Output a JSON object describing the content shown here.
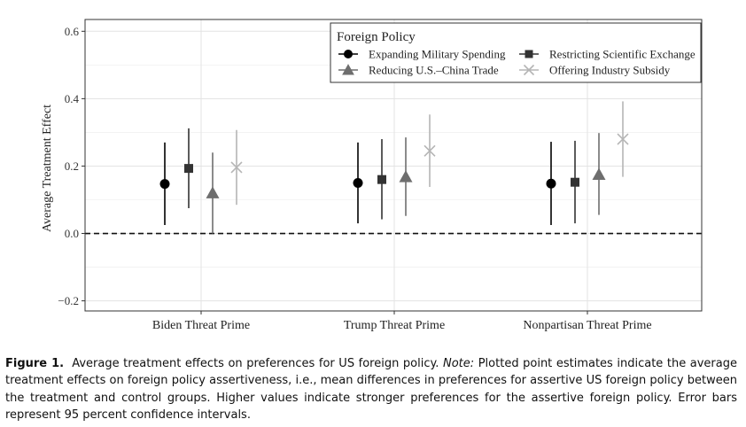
{
  "chart_data": {
    "type": "scatter",
    "ylabel": "Average Treatment Effect",
    "xlabel": "",
    "ylim": [
      -0.23,
      0.635
    ],
    "yticks": [
      -0.2,
      0.0,
      0.2,
      0.4,
      0.6
    ],
    "ytick_labels": [
      "−0.2",
      "0.0",
      "0.2",
      "0.4",
      "0.6"
    ],
    "categories": [
      "Biden Threat Prime",
      "Trump Threat Prime",
      "Nonpartisan Threat Prime"
    ],
    "reference_line": {
      "y": 0.0,
      "style": "dashed"
    },
    "grid": true,
    "legend": {
      "title": "Foreign Policy",
      "placement": "top-right"
    },
    "series": [
      {
        "name": "Expanding Military Spending",
        "marker": "circle",
        "color": "#000000",
        "estimates": [
          0.147,
          0.15,
          0.148
        ],
        "lower": [
          0.025,
          0.03,
          0.025
        ],
        "upper": [
          0.27,
          0.27,
          0.272
        ]
      },
      {
        "name": "Restricting Scientific Exchange",
        "marker": "square",
        "color": "#333333",
        "estimates": [
          0.193,
          0.16,
          0.152
        ],
        "lower": [
          0.075,
          0.042,
          0.03
        ],
        "upper": [
          0.312,
          0.28,
          0.275
        ]
      },
      {
        "name": "Reducing U.S.–China Trade",
        "marker": "triangle",
        "color": "#6e6e6e",
        "estimates": [
          0.12,
          0.168,
          0.175
        ],
        "lower": [
          0.0,
          0.052,
          0.055
        ],
        "upper": [
          0.24,
          0.285,
          0.298
        ]
      },
      {
        "name": "Offering Industry Subsidy",
        "marker": "x",
        "color": "#b5b5b5",
        "estimates": [
          0.196,
          0.245,
          0.28
        ],
        "lower": [
          0.085,
          0.138,
          0.168
        ],
        "upper": [
          0.307,
          0.353,
          0.392
        ]
      }
    ]
  },
  "caption": {
    "label": "Figure 1.",
    "main": "Average treatment effects on preferences for US foreign policy.",
    "note_label": "Note:",
    "note": "Plotted point estimates indicate the average treatment effects on foreign policy assertiveness, i.e., mean differences in preferences for assertive US foreign policy between the treatment and control groups. Higher values indicate stronger preferences for the assertive foreign policy. Error bars represent 95 percent confidence intervals."
  }
}
